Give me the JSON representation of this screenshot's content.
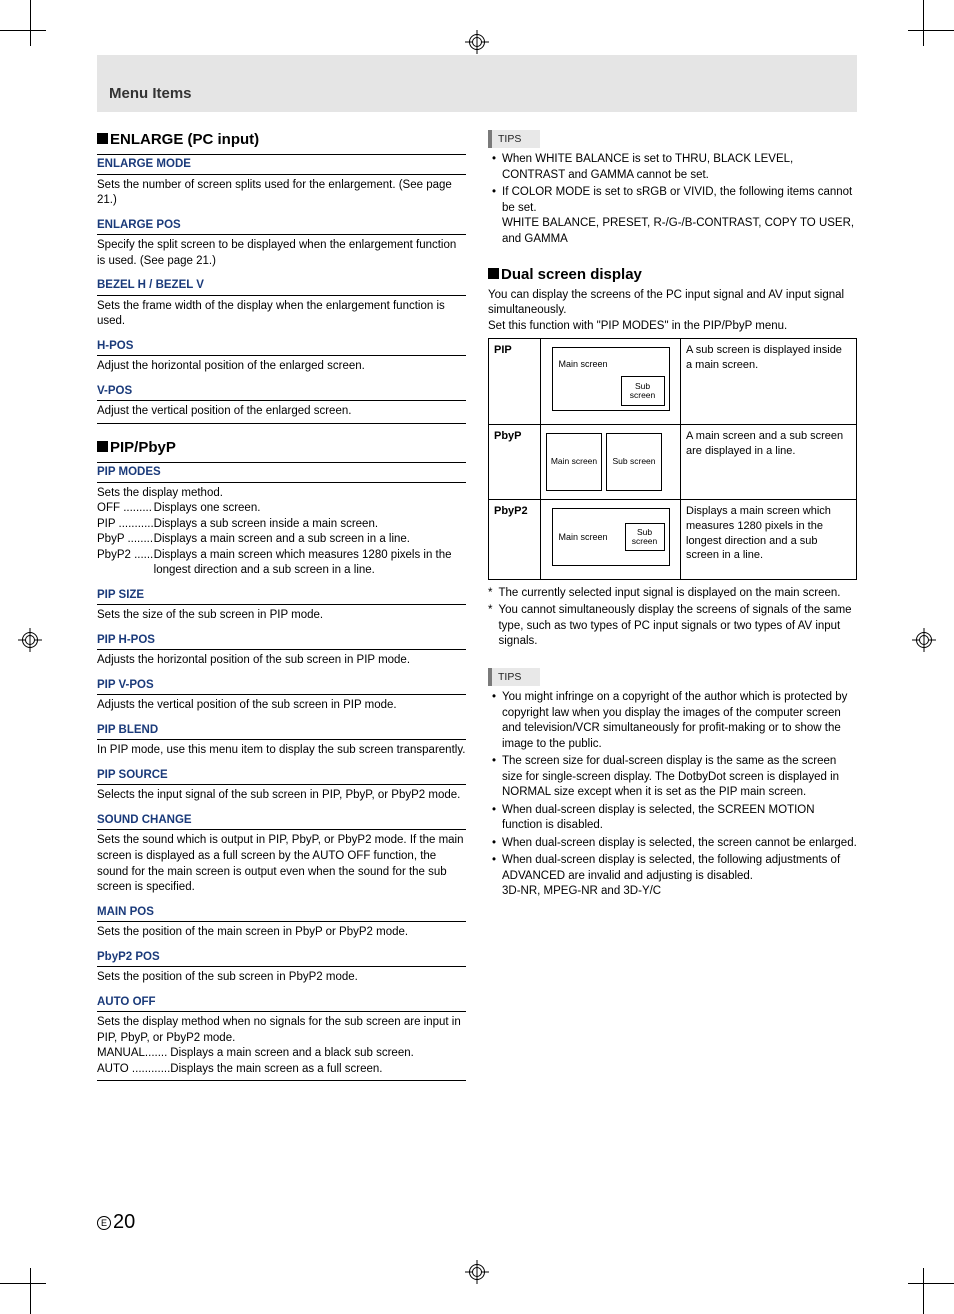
{
  "header": {
    "title": "Menu Items"
  },
  "pageNumber": {
    "marker": "E",
    "num": "20"
  },
  "colors": {
    "heading_blue": "#1a3a7a",
    "band_grey": "#e5e5e5",
    "tips_border": "#7a7a7a",
    "tips_bg": "#e8e8e8"
  },
  "left": {
    "section1": {
      "title": "ENLARGE (PC input)"
    },
    "enlarge": {
      "mode": {
        "head": "ENLARGE MODE",
        "body": "Sets the number of screen splits used for the enlargement. (See page 21.)"
      },
      "pos": {
        "head": "ENLARGE POS",
        "body": "Specify the split screen to be displayed when the enlargement function is used. (See page 21.)"
      },
      "bezel": {
        "head": "BEZEL H / BEZEL V",
        "body": "Sets the frame width of the display when the enlargement function is used."
      },
      "hpos": {
        "head": "H-POS",
        "body": "Adjust the horizontal position of the enlarged screen."
      },
      "vpos": {
        "head": "V-POS",
        "body": "Adjust the vertical position of the enlarged screen."
      }
    },
    "section2": {
      "title": "PIP/PbyP"
    },
    "pip": {
      "modes": {
        "head": "PIP MODES",
        "intro": "Sets the display method.",
        "rows": [
          {
            "k": "OFF .........",
            "v": "Displays one screen."
          },
          {
            "k": "PIP ...........",
            "v": "Displays a sub screen inside a main screen."
          },
          {
            "k": "PbyP ........",
            "v": "Displays a main screen and a sub screen in a line."
          },
          {
            "k": "PbyP2 ......",
            "v": "Displays a main screen which measures 1280 pixels in the longest direction and a sub screen in a line."
          }
        ]
      },
      "size": {
        "head": "PIP SIZE",
        "body": "Sets the size of the sub screen in PIP mode."
      },
      "hpos": {
        "head": "PIP H-POS",
        "body": "Adjusts the horizontal position of the sub screen in PIP mode."
      },
      "vpos": {
        "head": "PIP V-POS",
        "body": "Adjusts the vertical position of the sub screen in PIP mode."
      },
      "blend": {
        "head": "PIP BLEND",
        "body": "In PIP mode, use this menu item to display the sub screen transparently."
      },
      "source": {
        "head": "PIP SOURCE",
        "body": "Selects the input signal of the sub screen in PIP, PbyP, or PbyP2 mode."
      },
      "sound": {
        "head": "SOUND CHANGE",
        "body": "Sets the sound which is output in PIP, PbyP, or PbyP2 mode. If the main screen is displayed as a full screen by the AUTO OFF function, the sound for the main screen is output even when the sound for the sub screen is specified."
      },
      "mainpos": {
        "head": "MAIN POS",
        "body": "Sets the position of the main screen in PbyP or PbyP2 mode."
      },
      "p2pos": {
        "head": "PbyP2 POS",
        "body": "Sets the position of the sub screen in PbyP2 mode."
      },
      "autooff": {
        "head": "AUTO OFF",
        "intro": "Sets the display method when no signals for the sub screen are input in PIP, PbyP, or PbyP2 mode.",
        "rows": [
          {
            "k": "MANUAL.......",
            "v": " Displays a main screen and a black sub screen."
          },
          {
            "k": "AUTO ............",
            "v": " Displays the main screen as a full screen."
          }
        ]
      }
    }
  },
  "right": {
    "tips1": {
      "label": "TIPS",
      "items": [
        "When WHITE BALANCE is set to THRU, BLACK LEVEL, CONTRAST and GAMMA cannot be set.",
        "If COLOR MODE is set to sRGB or VIVID, the following items cannot be set.\nWHITE BALANCE, PRESET, R-/G-/B-CONTRAST, COPY TO USER, and GAMMA"
      ]
    },
    "dual": {
      "title": "Dual screen display",
      "intro1": "You can display the screens of the PC input signal and AV input signal simultaneously.",
      "intro2": "Set this function with \"PIP MODES\" in the PIP/PbyP menu.",
      "rows": [
        {
          "name": "PIP",
          "main": "Main screen",
          "sub": "Sub\nscreen",
          "desc": "A sub screen is displayed inside a main screen."
        },
        {
          "name": "PbyP",
          "main": "Main\nscreen",
          "sub": "Sub\nscreen",
          "desc": "A main screen and a sub screen are displayed in a line."
        },
        {
          "name": "PbyP2",
          "main": "Main screen",
          "sub": "Sub\nscreen",
          "desc": "Displays a main screen which measures 1280 pixels in the longest direction and a sub screen in a line."
        }
      ],
      "notes": [
        "The currently selected input signal is displayed on the main screen.",
        "You cannot simultaneously display the screens of signals of the same type, such as two types of PC input signals or two types of AV input signals."
      ]
    },
    "tips2": {
      "label": "TIPS",
      "items": [
        "You might infringe on a copyright of the author which is protected by copyright law when you display the images of the computer screen and television/VCR simultaneously for profit-making or to show the image to the public.",
        "The screen size for dual-screen display is the same as the screen size for single-screen display. The DotbyDot screen is displayed in NORMAL size except when it is set as the PIP main screen.",
        "When dual-screen display is selected, the SCREEN MOTION function is disabled.",
        "When dual-screen display is selected, the screen cannot be enlarged.",
        "When dual-screen display is selected, the following adjustments of ADVANCED are invalid and adjusting is disabled.\n3D-NR, MPEG-NR and 3D-Y/C"
      ]
    }
  }
}
